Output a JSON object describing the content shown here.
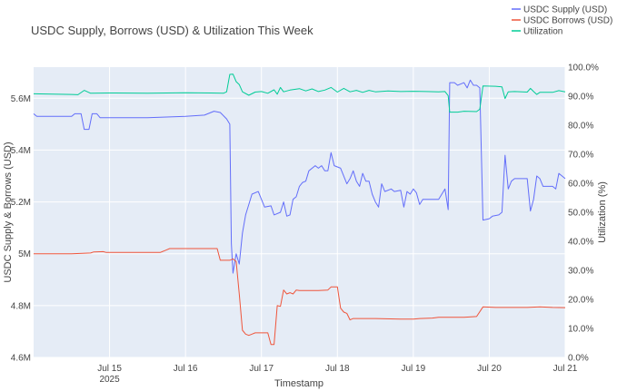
{
  "chart_data": {
    "type": "line",
    "title": "USDC Supply, Borrows (USD) & Utilization This Week",
    "xlabel": "Timestamp",
    "ylabel": "USDC Supply & Borrows (USD)",
    "y2label": "Utilization (%)",
    "x_range": [
      "2025-07-14T00:00",
      "2025-07-21T00:00"
    ],
    "x_ticks": [
      {
        "t": "2025-07-15T00:00",
        "label": "Jul 15",
        "sub": "2025"
      },
      {
        "t": "2025-07-16T00:00",
        "label": "Jul 16",
        "sub": ""
      },
      {
        "t": "2025-07-17T00:00",
        "label": "Jul 17",
        "sub": ""
      },
      {
        "t": "2025-07-18T00:00",
        "label": "Jul 18",
        "sub": ""
      },
      {
        "t": "2025-07-19T00:00",
        "label": "Jul 19",
        "sub": ""
      },
      {
        "t": "2025-07-20T00:00",
        "label": "Jul 20",
        "sub": ""
      },
      {
        "t": "2025-07-21T00:00",
        "label": "Jul 21",
        "sub": ""
      }
    ],
    "y_range": [
      4600000,
      5720000
    ],
    "y_ticks": [
      {
        "v": 4600000,
        "label": "4.6M"
      },
      {
        "v": 4800000,
        "label": "4.8M"
      },
      {
        "v": 5000000,
        "label": "5M"
      },
      {
        "v": 5200000,
        "label": "5.2M"
      },
      {
        "v": 5400000,
        "label": "5.4M"
      },
      {
        "v": 5600000,
        "label": "5.6M"
      }
    ],
    "y2_range": [
      0,
      100
    ],
    "y2_ticks": [
      {
        "v": 0,
        "label": "0.0%"
      },
      {
        "v": 10,
        "label": "10.0%"
      },
      {
        "v": 20,
        "label": "20.0%"
      },
      {
        "v": 30,
        "label": "30.0%"
      },
      {
        "v": 40,
        "label": "40.0%"
      },
      {
        "v": 50,
        "label": "50.0%"
      },
      {
        "v": 60,
        "label": "60.0%"
      },
      {
        "v": 70,
        "label": "70.0%"
      },
      {
        "v": 80,
        "label": "80.0%"
      },
      {
        "v": 90,
        "label": "90.0%"
      },
      {
        "v": 100,
        "label": "100.0%"
      }
    ],
    "legend_position": "top-right",
    "grid": true,
    "series": [
      {
        "name": "USDC Supply (USD)",
        "color": "#636efa",
        "axis": "y",
        "points": [
          [
            "2025-07-14T00:00",
            5540000
          ],
          [
            "2025-07-14T01:00",
            5530000
          ],
          [
            "2025-07-14T12:00",
            5530000
          ],
          [
            "2025-07-14T13:00",
            5540000
          ],
          [
            "2025-07-14T15:00",
            5540000
          ],
          [
            "2025-07-14T16:00",
            5480000
          ],
          [
            "2025-07-14T17:30",
            5480000
          ],
          [
            "2025-07-14T18:30",
            5540000
          ],
          [
            "2025-07-14T20:00",
            5540000
          ],
          [
            "2025-07-14T21:00",
            5525000
          ],
          [
            "2025-07-15T12:00",
            5525000
          ],
          [
            "2025-07-16T00:00",
            5530000
          ],
          [
            "2025-07-16T06:00",
            5535000
          ],
          [
            "2025-07-16T09:00",
            5550000
          ],
          [
            "2025-07-16T11:00",
            5545000
          ],
          [
            "2025-07-16T13:00",
            5520000
          ],
          [
            "2025-07-16T14:00",
            5500000
          ],
          [
            "2025-07-16T14:30",
            5040000
          ],
          [
            "2025-07-16T15:00",
            4925000
          ],
          [
            "2025-07-16T16:00",
            5000000
          ],
          [
            "2025-07-16T17:00",
            4960000
          ],
          [
            "2025-07-16T18:00",
            5080000
          ],
          [
            "2025-07-16T19:00",
            5150000
          ],
          [
            "2025-07-16T21:00",
            5230000
          ],
          [
            "2025-07-16T23:00",
            5240000
          ],
          [
            "2025-07-17T01:00",
            5180000
          ],
          [
            "2025-07-17T03:00",
            5185000
          ],
          [
            "2025-07-17T04:00",
            5150000
          ],
          [
            "2025-07-17T06:00",
            5160000
          ],
          [
            "2025-07-17T07:00",
            5200000
          ],
          [
            "2025-07-17T08:00",
            5145000
          ],
          [
            "2025-07-17T09:00",
            5150000
          ],
          [
            "2025-07-17T10:00",
            5210000
          ],
          [
            "2025-07-17T11:00",
            5220000
          ],
          [
            "2025-07-17T12:00",
            5260000
          ],
          [
            "2025-07-17T13:00",
            5275000
          ],
          [
            "2025-07-17T14:00",
            5280000
          ],
          [
            "2025-07-17T15:00",
            5320000
          ],
          [
            "2025-07-17T17:00",
            5340000
          ],
          [
            "2025-07-17T18:00",
            5330000
          ],
          [
            "2025-07-17T19:00",
            5340000
          ],
          [
            "2025-07-17T20:00",
            5320000
          ],
          [
            "2025-07-17T21:00",
            5320000
          ],
          [
            "2025-07-17T22:00",
            5390000
          ],
          [
            "2025-07-17T23:00",
            5340000
          ],
          [
            "2025-07-18T01:00",
            5330000
          ],
          [
            "2025-07-18T03:00",
            5270000
          ],
          [
            "2025-07-18T04:00",
            5290000
          ],
          [
            "2025-07-18T05:00",
            5320000
          ],
          [
            "2025-07-18T06:00",
            5280000
          ],
          [
            "2025-07-18T07:00",
            5260000
          ],
          [
            "2025-07-18T08:00",
            5310000
          ],
          [
            "2025-07-18T09:00",
            5280000
          ],
          [
            "2025-07-18T10:00",
            5280000
          ],
          [
            "2025-07-18T11:00",
            5230000
          ],
          [
            "2025-07-18T12:00",
            5200000
          ],
          [
            "2025-07-18T13:00",
            5180000
          ],
          [
            "2025-07-18T14:00",
            5270000
          ],
          [
            "2025-07-18T15:00",
            5240000
          ],
          [
            "2025-07-18T17:00",
            5250000
          ],
          [
            "2025-07-18T18:00",
            5240000
          ],
          [
            "2025-07-18T20:00",
            5245000
          ],
          [
            "2025-07-18T21:00",
            5180000
          ],
          [
            "2025-07-18T22:00",
            5240000
          ],
          [
            "2025-07-18T23:00",
            5230000
          ],
          [
            "2025-07-19T00:00",
            5250000
          ],
          [
            "2025-07-19T01:00",
            5235000
          ],
          [
            "2025-07-19T02:00",
            5190000
          ],
          [
            "2025-07-19T03:00",
            5210000
          ],
          [
            "2025-07-19T06:00",
            5210000
          ],
          [
            "2025-07-19T08:00",
            5210000
          ],
          [
            "2025-07-19T09:00",
            5230000
          ],
          [
            "2025-07-19T10:00",
            5250000
          ],
          [
            "2025-07-19T11:00",
            5170000
          ],
          [
            "2025-07-19T11:30",
            5660000
          ],
          [
            "2025-07-19T13:00",
            5660000
          ],
          [
            "2025-07-19T14:00",
            5650000
          ],
          [
            "2025-07-19T16:00",
            5660000
          ],
          [
            "2025-07-19T17:00",
            5640000
          ],
          [
            "2025-07-19T18:00",
            5670000
          ],
          [
            "2025-07-19T19:00",
            5650000
          ],
          [
            "2025-07-19T20:00",
            5650000
          ],
          [
            "2025-07-19T21:00",
            5640000
          ],
          [
            "2025-07-19T22:00",
            5130000
          ],
          [
            "2025-07-20T00:00",
            5135000
          ],
          [
            "2025-07-20T01:00",
            5145000
          ],
          [
            "2025-07-20T03:00",
            5150000
          ],
          [
            "2025-07-20T04:00",
            5160000
          ],
          [
            "2025-07-20T05:00",
            5380000
          ],
          [
            "2025-07-20T06:00",
            5250000
          ],
          [
            "2025-07-20T07:00",
            5280000
          ],
          [
            "2025-07-20T08:00",
            5290000
          ],
          [
            "2025-07-20T12:00",
            5290000
          ],
          [
            "2025-07-20T13:00",
            5165000
          ],
          [
            "2025-07-20T14:00",
            5210000
          ],
          [
            "2025-07-20T15:00",
            5300000
          ],
          [
            "2025-07-20T16:00",
            5290000
          ],
          [
            "2025-07-20T17:00",
            5260000
          ],
          [
            "2025-07-20T20:00",
            5260000
          ],
          [
            "2025-07-20T21:00",
            5250000
          ],
          [
            "2025-07-20T22:00",
            5310000
          ],
          [
            "2025-07-21T00:00",
            5290000
          ]
        ]
      },
      {
        "name": "USDC Borrows (USD)",
        "color": "#ef553b",
        "axis": "y",
        "points": [
          [
            "2025-07-14T00:00",
            5000000
          ],
          [
            "2025-07-14T08:00",
            5000000
          ],
          [
            "2025-07-14T12:00",
            5000000
          ],
          [
            "2025-07-14T18:00",
            5003000
          ],
          [
            "2025-07-14T19:00",
            5007000
          ],
          [
            "2025-07-14T22:00",
            5008000
          ],
          [
            "2025-07-14T23:00",
            5005000
          ],
          [
            "2025-07-15T16:00",
            5005000
          ],
          [
            "2025-07-15T17:00",
            5010000
          ],
          [
            "2025-07-15T18:00",
            5015000
          ],
          [
            "2025-07-15T19:00",
            5020000
          ],
          [
            "2025-07-16T10:00",
            5020000
          ],
          [
            "2025-07-16T11:00",
            4975000
          ],
          [
            "2025-07-16T14:00",
            4975000
          ],
          [
            "2025-07-16T15:00",
            4980000
          ],
          [
            "2025-07-16T16:00",
            4970000
          ],
          [
            "2025-07-16T17:00",
            4845000
          ],
          [
            "2025-07-16T18:00",
            4705000
          ],
          [
            "2025-07-16T19:00",
            4690000
          ],
          [
            "2025-07-16T20:00",
            4685000
          ],
          [
            "2025-07-16T21:00",
            4690000
          ],
          [
            "2025-07-16T22:00",
            4695000
          ],
          [
            "2025-07-17T02:00",
            4695000
          ],
          [
            "2025-07-17T03:00",
            4650000
          ],
          [
            "2025-07-17T04:00",
            4650000
          ],
          [
            "2025-07-17T05:00",
            4800000
          ],
          [
            "2025-07-17T06:00",
            4797000
          ],
          [
            "2025-07-17T07:00",
            4860000
          ],
          [
            "2025-07-17T08:00",
            4845000
          ],
          [
            "2025-07-17T09:00",
            4850000
          ],
          [
            "2025-07-17T10:00",
            4845000
          ],
          [
            "2025-07-17T11:00",
            4860000
          ],
          [
            "2025-07-17T12:00",
            4858000
          ],
          [
            "2025-07-17T18:00",
            4858000
          ],
          [
            "2025-07-17T21:00",
            4860000
          ],
          [
            "2025-07-17T22:00",
            4872000
          ],
          [
            "2025-07-18T00:00",
            4872000
          ],
          [
            "2025-07-18T01:00",
            4790000
          ],
          [
            "2025-07-18T02:00",
            4775000
          ],
          [
            "2025-07-18T03:00",
            4770000
          ],
          [
            "2025-07-18T04:00",
            4745000
          ],
          [
            "2025-07-18T05:00",
            4750000
          ],
          [
            "2025-07-18T12:00",
            4750000
          ],
          [
            "2025-07-18T20:00",
            4748000
          ],
          [
            "2025-07-19T00:00",
            4748000
          ],
          [
            "2025-07-19T02:00",
            4750000
          ],
          [
            "2025-07-19T06:00",
            4752000
          ],
          [
            "2025-07-19T08:00",
            4755000
          ],
          [
            "2025-07-19T12:00",
            4755000
          ],
          [
            "2025-07-19T16:00",
            4755000
          ],
          [
            "2025-07-19T20:00",
            4758000
          ],
          [
            "2025-07-19T22:00",
            4795000
          ],
          [
            "2025-07-20T02:00",
            4793000
          ],
          [
            "2025-07-20T08:00",
            4793000
          ],
          [
            "2025-07-20T12:00",
            4793000
          ],
          [
            "2025-07-20T16:00",
            4795000
          ],
          [
            "2025-07-20T20:00",
            4793000
          ],
          [
            "2025-07-21T00:00",
            4792000
          ]
        ]
      },
      {
        "name": "Utilization",
        "color": "#00cc96",
        "axis": "y2",
        "points": [
          [
            "2025-07-14T00:00",
            90.8
          ],
          [
            "2025-07-14T12:00",
            90.6
          ],
          [
            "2025-07-14T14:00",
            90.5
          ],
          [
            "2025-07-14T16:00",
            92.0
          ],
          [
            "2025-07-14T18:00",
            91.0
          ],
          [
            "2025-07-15T00:00",
            91.1
          ],
          [
            "2025-07-15T12:00",
            91.0
          ],
          [
            "2025-07-16T00:00",
            91.2
          ],
          [
            "2025-07-16T08:00",
            91.1
          ],
          [
            "2025-07-16T12:00",
            91.0
          ],
          [
            "2025-07-16T13:00",
            91.5
          ],
          [
            "2025-07-16T14:00",
            97.5
          ],
          [
            "2025-07-16T15:00",
            97.6
          ],
          [
            "2025-07-16T16:00",
            95.0
          ],
          [
            "2025-07-16T17:00",
            94.0
          ],
          [
            "2025-07-16T18:00",
            91.5
          ],
          [
            "2025-07-16T20:00",
            90.3
          ],
          [
            "2025-07-16T22:00",
            91.4
          ],
          [
            "2025-07-17T00:00",
            91.6
          ],
          [
            "2025-07-17T02:00",
            91.0
          ],
          [
            "2025-07-17T04:00",
            92.2
          ],
          [
            "2025-07-17T05:00",
            90.7
          ],
          [
            "2025-07-17T06:00",
            93.0
          ],
          [
            "2025-07-17T07:00",
            91.5
          ],
          [
            "2025-07-17T09:00",
            92.1
          ],
          [
            "2025-07-17T12:00",
            92.6
          ],
          [
            "2025-07-17T14:00",
            91.8
          ],
          [
            "2025-07-17T16:00",
            92.5
          ],
          [
            "2025-07-17T18:00",
            91.6
          ],
          [
            "2025-07-17T20:00",
            92.1
          ],
          [
            "2025-07-17T22:00",
            93.0
          ],
          [
            "2025-07-18T00:00",
            91.4
          ],
          [
            "2025-07-18T02:00",
            92.7
          ],
          [
            "2025-07-18T04:00",
            91.5
          ],
          [
            "2025-07-18T06:00",
            92.0
          ],
          [
            "2025-07-18T08:00",
            91.3
          ],
          [
            "2025-07-18T10:00",
            92.0
          ],
          [
            "2025-07-18T12:00",
            91.5
          ],
          [
            "2025-07-18T16:00",
            91.8
          ],
          [
            "2025-07-18T20:00",
            91.6
          ],
          [
            "2025-07-19T00:00",
            91.7
          ],
          [
            "2025-07-19T04:00",
            91.6
          ],
          [
            "2025-07-19T08:00",
            91.5
          ],
          [
            "2025-07-19T10:00",
            91.6
          ],
          [
            "2025-07-19T11:00",
            90.2
          ],
          [
            "2025-07-19T11:30",
            84.5
          ],
          [
            "2025-07-19T14:00",
            84.5
          ],
          [
            "2025-07-19T16:00",
            84.8
          ],
          [
            "2025-07-19T20:00",
            84.7
          ],
          [
            "2025-07-19T21:00",
            85.5
          ],
          [
            "2025-07-19T22:00",
            93.5
          ],
          [
            "2025-07-20T02:00",
            93.4
          ],
          [
            "2025-07-20T04:00",
            93.2
          ],
          [
            "2025-07-20T05:00",
            89.2
          ],
          [
            "2025-07-20T06:00",
            91.5
          ],
          [
            "2025-07-20T08:00",
            91.6
          ],
          [
            "2025-07-20T12:00",
            91.4
          ],
          [
            "2025-07-20T13:00",
            92.7
          ],
          [
            "2025-07-20T14:00",
            91.6
          ],
          [
            "2025-07-20T15:00",
            90.6
          ],
          [
            "2025-07-20T16:00",
            91.3
          ],
          [
            "2025-07-20T20:00",
            91.3
          ],
          [
            "2025-07-20T22:00",
            91.9
          ],
          [
            "2025-07-21T00:00",
            91.5
          ]
        ]
      }
    ]
  }
}
